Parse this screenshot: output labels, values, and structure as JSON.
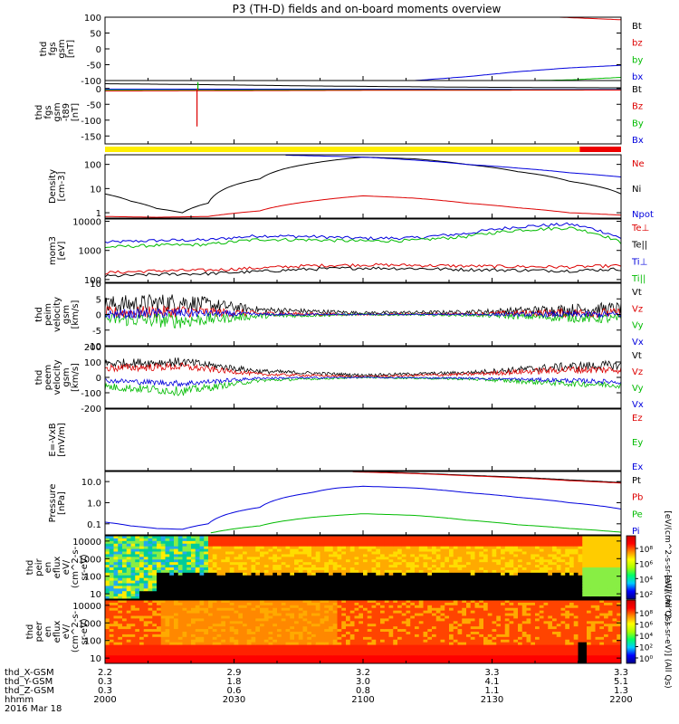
{
  "title": "P3 (TH-D) fields and on-board moments overview",
  "chart_data": [
    {
      "type": "line",
      "panel": "fgs_gsm",
      "ylabel": [
        "thd",
        "fgs",
        "gsm",
        "[nT]"
      ],
      "yticks": [
        100,
        50,
        0,
        -50,
        -100
      ],
      "ylim": [
        -100,
        100
      ],
      "legend": [
        {
          "name": "Bt",
          "color": "#000000"
        },
        {
          "name": "bz",
          "color": "#dd0000"
        },
        {
          "name": "by",
          "color": "#00bb00"
        },
        {
          "name": "bx",
          "color": "#0000dd"
        }
      ],
      "series": [
        {
          "name": "Bt",
          "x": [
            0.0,
            1.0
          ],
          "values": [
            null,
            null
          ]
        },
        {
          "name": "bz",
          "x": [
            0.88,
            1.0
          ],
          "values": [
            100,
            92
          ]
        },
        {
          "name": "by",
          "x": [
            0.83,
            0.9,
            1.0
          ],
          "values": [
            -100,
            -98,
            -90
          ]
        },
        {
          "name": "bx",
          "x": [
            0.6,
            0.7,
            0.8,
            0.9,
            1.0
          ],
          "values": [
            -100,
            -88,
            -72,
            -60,
            -52
          ]
        }
      ]
    },
    {
      "type": "line",
      "panel": "fgs_gsm_dip",
      "ylabel": [
        "thd",
        "fgs",
        "gsm",
        "-t89",
        "[nT]"
      ],
      "yticks": [
        0,
        -50,
        -100,
        -150
      ],
      "ylim": [
        -175,
        25
      ],
      "legend": [
        {
          "name": "Bt",
          "color": "#000000"
        },
        {
          "name": "Bz",
          "color": "#dd0000"
        },
        {
          "name": "By",
          "color": "#00bb00"
        },
        {
          "name": "Bx",
          "color": "#0000dd"
        }
      ],
      "series": [
        {
          "name": "Bt",
          "x": [
            0.0,
            0.2,
            0.4,
            0.7,
            1.0
          ],
          "values": [
            15,
            12,
            8,
            4,
            2
          ]
        },
        {
          "name": "Bx",
          "x": [
            0.0,
            0.5,
            1.0
          ],
          "values": [
            -2,
            -2,
            -3
          ]
        },
        {
          "name": "By",
          "x": [
            0.0,
            0.5,
            1.0
          ],
          "values": [
            -6,
            -4,
            -4
          ]
        },
        {
          "name": "Bz",
          "x": [
            0.0,
            0.5,
            1.0
          ],
          "values": [
            -8,
            -6,
            -5
          ]
        }
      ]
    },
    {
      "type": "bar_strip",
      "panel": "mode",
      "segments": [
        {
          "x0": 0.0,
          "x1": 0.92,
          "color": "#ffee00"
        },
        {
          "x0": 0.92,
          "x1": 1.0,
          "color": "#ee0000"
        }
      ]
    },
    {
      "type": "line",
      "panel": "density",
      "scale": "log",
      "ylabel": [
        "Density",
        "[cm-3]"
      ],
      "ytick_labels": [
        "100",
        "10",
        "1"
      ],
      "yticks": [
        100,
        10,
        1
      ],
      "ylim": [
        0.6,
        250
      ],
      "legend": [
        {
          "name": "Ne",
          "color": "#dd0000"
        },
        {
          "name": "Ni",
          "color": "#000000"
        },
        {
          "name": "Npot",
          "color": "#0000dd"
        }
      ],
      "series": [
        {
          "name": "Ni",
          "x": [
            0.0,
            0.05,
            0.1,
            0.15,
            0.2,
            0.3,
            0.4,
            0.5,
            0.6,
            0.7,
            0.8,
            0.9,
            1.0
          ],
          "values": [
            6,
            3,
            1.5,
            1.0,
            2.5,
            25,
            110,
            200,
            170,
            100,
            50,
            20,
            6
          ]
        },
        {
          "name": "Ne",
          "x": [
            0.0,
            0.1,
            0.2,
            0.3,
            0.4,
            0.5,
            0.6,
            0.7,
            0.8,
            0.9,
            1.0
          ],
          "values": [
            0.7,
            0.65,
            0.7,
            1.2,
            3,
            5,
            4,
            2.5,
            1.6,
            1.0,
            0.8
          ]
        },
        {
          "name": "Npot",
          "x": [
            0.35,
            0.5,
            0.6,
            0.7,
            0.8,
            0.9,
            1.0
          ],
          "values": [
            240,
            200,
            150,
            100,
            70,
            45,
            30
          ]
        }
      ]
    },
    {
      "type": "line",
      "panel": "temperature",
      "scale": "log",
      "ylabel": [
        "mom3",
        "[eV]"
      ],
      "ytick_labels": [
        "10000",
        "1000",
        "100"
      ],
      "yticks": [
        10000,
        1000,
        100
      ],
      "ylim": [
        80,
        12000
      ],
      "legend": [
        {
          "name": "Te⊥",
          "color": "#dd0000"
        },
        {
          "name": "Te||",
          "color": "#000000"
        },
        {
          "name": "Ti⊥",
          "color": "#0000dd"
        },
        {
          "name": "Ti||",
          "color": "#00bb00"
        }
      ],
      "series": [
        {
          "name": "Ti⊥",
          "x": [
            0.0,
            0.1,
            0.2,
            0.3,
            0.4,
            0.5,
            0.6,
            0.7,
            0.8,
            0.9,
            1.0
          ],
          "values": [
            1900,
            2200,
            2300,
            3200,
            3000,
            2600,
            2700,
            3800,
            6500,
            8000,
            2500
          ]
        },
        {
          "name": "Ti||",
          "x": [
            0.0,
            0.1,
            0.2,
            0.3,
            0.4,
            0.5,
            0.6,
            0.7,
            0.8,
            0.9,
            1.0
          ],
          "values": [
            1300,
            1500,
            1600,
            2400,
            2300,
            2100,
            2200,
            3000,
            5000,
            6000,
            1800
          ]
        },
        {
          "name": "Te⊥",
          "x": [
            0.0,
            0.1,
            0.2,
            0.3,
            0.4,
            0.5,
            0.6,
            0.7,
            0.8,
            0.9,
            1.0
          ],
          "values": [
            170,
            200,
            210,
            250,
            300,
            320,
            310,
            290,
            280,
            270,
            300
          ]
        },
        {
          "name": "Te||",
          "x": [
            0.0,
            0.1,
            0.2,
            0.3,
            0.4,
            0.5,
            0.6,
            0.7,
            0.8,
            0.9,
            1.0
          ],
          "values": [
            130,
            150,
            160,
            190,
            230,
            250,
            240,
            220,
            210,
            200,
            230
          ]
        }
      ]
    },
    {
      "type": "line",
      "panel": "peim_velocity",
      "noisy": true,
      "ylabel": [
        "thd",
        "peim",
        "velocity",
        "gsm",
        "[km/s]"
      ],
      "yticks": [
        10,
        5,
        0,
        -5,
        -10
      ],
      "ylim": [
        -10,
        10
      ],
      "legend": [
        {
          "name": "Vt",
          "color": "#000000"
        },
        {
          "name": "Vz",
          "color": "#dd0000"
        },
        {
          "name": "Vy",
          "color": "#00bb00"
        },
        {
          "name": "Vx",
          "color": "#0000dd"
        }
      ],
      "series": [
        {
          "name": "Vt",
          "x": [
            0.0,
            0.15,
            0.3,
            0.5,
            0.7,
            0.9,
            1.0
          ],
          "values": [
            3,
            4,
            1.5,
            0.5,
            0.8,
            1.5,
            2
          ],
          "noise": [
            3,
            3,
            1,
            0.5,
            0.6,
            2,
            2
          ]
        },
        {
          "name": "Vz",
          "x": [
            0.0,
            0.15,
            0.3,
            0.5,
            0.7,
            0.9,
            1.0
          ],
          "values": [
            0.5,
            1,
            0.3,
            0,
            0.2,
            0.5,
            0.5
          ],
          "noise": [
            2,
            2,
            0.8,
            0.3,
            0.4,
            1.5,
            1.5
          ]
        },
        {
          "name": "Vy",
          "x": [
            0.0,
            0.15,
            0.3,
            0.5,
            0.7,
            0.9,
            1.0
          ],
          "values": [
            -1.5,
            -2,
            -0.5,
            0,
            -0.2,
            -1,
            -1.5
          ],
          "noise": [
            2,
            2.5,
            0.8,
            0.3,
            0.4,
            1.5,
            1.5
          ]
        },
        {
          "name": "Vx",
          "x": [
            0.0,
            0.15,
            0.3,
            0.5,
            0.7,
            0.9,
            1.0
          ],
          "values": [
            0,
            0.5,
            0,
            0,
            0,
            0,
            0
          ],
          "noise": [
            1.5,
            1.5,
            0.5,
            0.2,
            0.3,
            1,
            1
          ]
        }
      ]
    },
    {
      "type": "line",
      "panel": "peem_velocity",
      "noisy": true,
      "ylabel": [
        "thd",
        "peem",
        "velocity",
        "gsm",
        "[km/s]"
      ],
      "yticks": [
        200,
        100,
        0,
        -100,
        -200
      ],
      "ylim": [
        -200,
        200
      ],
      "legend": [
        {
          "name": "Vt",
          "color": "#000000"
        },
        {
          "name": "Vz",
          "color": "#dd0000"
        },
        {
          "name": "Vy",
          "color": "#00bb00"
        },
        {
          "name": "Vx",
          "color": "#0000dd"
        }
      ],
      "series": [
        {
          "name": "Vt",
          "x": [
            0.0,
            0.15,
            0.3,
            0.5,
            0.7,
            0.9,
            1.0
          ],
          "values": [
            90,
            100,
            40,
            15,
            30,
            70,
            80
          ],
          "noise": [
            30,
            30,
            15,
            8,
            12,
            30,
            30
          ]
        },
        {
          "name": "Vz",
          "x": [
            0.0,
            0.15,
            0.3,
            0.5,
            0.7,
            0.9,
            1.0
          ],
          "values": [
            60,
            70,
            20,
            5,
            20,
            50,
            50
          ],
          "noise": [
            25,
            25,
            10,
            5,
            10,
            25,
            25
          ]
        },
        {
          "name": "Vy",
          "x": [
            0.0,
            0.15,
            0.3,
            0.5,
            0.7,
            0.9,
            1.0
          ],
          "values": [
            -60,
            -90,
            -20,
            0,
            -10,
            -40,
            -50
          ],
          "noise": [
            25,
            30,
            10,
            5,
            8,
            20,
            20
          ]
        },
        {
          "name": "Vx",
          "x": [
            0.0,
            0.15,
            0.3,
            0.5,
            0.7,
            0.9,
            1.0
          ],
          "values": [
            -20,
            -40,
            -5,
            0,
            -5,
            -20,
            -30
          ],
          "noise": [
            15,
            20,
            8,
            4,
            6,
            15,
            15
          ]
        }
      ]
    },
    {
      "type": "line",
      "panel": "e_field",
      "ylabel": [
        "E=-VxB",
        "[mV/m]"
      ],
      "yticks": [],
      "ylim": [
        -1,
        1
      ],
      "legend": [
        {
          "name": "Ez",
          "color": "#dd0000"
        },
        {
          "name": "Ey",
          "color": "#00bb00"
        },
        {
          "name": "Ex",
          "color": "#0000dd"
        }
      ],
      "series": []
    },
    {
      "type": "line",
      "panel": "pressure",
      "scale": "log",
      "ylabel": [
        "Pressure",
        "[nPa]"
      ],
      "ytick_labels": [
        "10.0",
        "1.0",
        "0.1"
      ],
      "yticks": [
        10,
        1,
        0.1
      ],
      "ylim": [
        0.03,
        30
      ],
      "legend": [
        {
          "name": "Pt",
          "color": "#000000"
        },
        {
          "name": "Pb",
          "color": "#dd0000"
        },
        {
          "name": "Pe",
          "color": "#00bb00"
        },
        {
          "name": "Pi",
          "color": "#0000dd"
        }
      ],
      "series": [
        {
          "name": "Pt",
          "x": [
            0.48,
            0.6,
            0.7,
            0.8,
            0.9,
            1.0
          ],
          "values": [
            30,
            25,
            20,
            16,
            12,
            9
          ]
        },
        {
          "name": "Pb",
          "x": [
            0.48,
            0.6,
            0.7,
            0.8,
            0.9,
            1.0
          ],
          "values": [
            29,
            24,
            19,
            15,
            11,
            8.5
          ]
        },
        {
          "name": "Pi",
          "x": [
            0.0,
            0.05,
            0.1,
            0.15,
            0.2,
            0.3,
            0.4,
            0.45,
            0.5,
            0.6,
            0.7,
            0.8,
            0.9,
            1.0
          ],
          "values": [
            0.12,
            0.08,
            0.06,
            0.055,
            0.1,
            0.6,
            3,
            5,
            6,
            5,
            3,
            1.8,
            1.0,
            0.5
          ]
        },
        {
          "name": "Pe",
          "x": [
            0.0,
            0.1,
            0.2,
            0.3,
            0.4,
            0.5,
            0.6,
            0.7,
            0.8,
            0.9,
            1.0
          ],
          "values": [
            null,
            null,
            0.035,
            0.08,
            0.2,
            0.3,
            0.25,
            0.15,
            0.09,
            0.06,
            0.04
          ]
        }
      ]
    },
    {
      "type": "heatmap",
      "panel": "peir_spectrogram",
      "scale": "log",
      "ylabel": [
        "thd",
        "peir",
        "en",
        "eflux",
        "eV/",
        "(cm^2-s-",
        "sr-eV)"
      ],
      "ytick_labels": [
        "10000",
        "1000",
        "100",
        "10"
      ],
      "yticks": [
        10000,
        1000,
        100,
        10
      ],
      "ylim": [
        5,
        20000
      ],
      "colorbar": {
        "labels": [
          "10⁸",
          "10⁶",
          "10⁴",
          "10²"
        ],
        "title": "[eV/(cm^2-s-sr-eV)] (All Qs)"
      }
    },
    {
      "type": "heatmap",
      "panel": "peer_spectrogram",
      "scale": "log",
      "ylabel": [
        "thd",
        "peer",
        "en",
        "eflux",
        "eV/",
        "(cm^2-s-",
        "sr-eV)"
      ],
      "ytick_labels": [
        "10000",
        "1000",
        "100",
        "10"
      ],
      "yticks": [
        10000,
        1000,
        100,
        10
      ],
      "ylim": [
        5,
        20000
      ],
      "colorbar": {
        "labels": [
          "10⁸",
          "10⁶",
          "10⁴",
          "10²",
          "10⁰"
        ],
        "title": "[eV/(cm^2-s-sr-eV)] (All Qs)"
      }
    }
  ],
  "x_axis": {
    "rows": [
      {
        "label": "thd_X-GSM",
        "values": [
          "2.2",
          "2.9",
          "3.2",
          "3.3",
          "3.3"
        ]
      },
      {
        "label": "thd_Y-GSM",
        "values": [
          "0.3",
          "1.8",
          "3.0",
          "4.1",
          "5.1"
        ]
      },
      {
        "label": "thd_Z-GSM",
        "values": [
          "0.3",
          "0.6",
          "0.8",
          "1.1",
          "1.3"
        ]
      },
      {
        "label": "hhmm",
        "values": [
          "2000",
          "2030",
          "2100",
          "2130",
          "2200"
        ]
      }
    ],
    "tick_positions": [
      0.0,
      0.25,
      0.5,
      0.75,
      1.0
    ],
    "date": "2016 Mar 18"
  }
}
